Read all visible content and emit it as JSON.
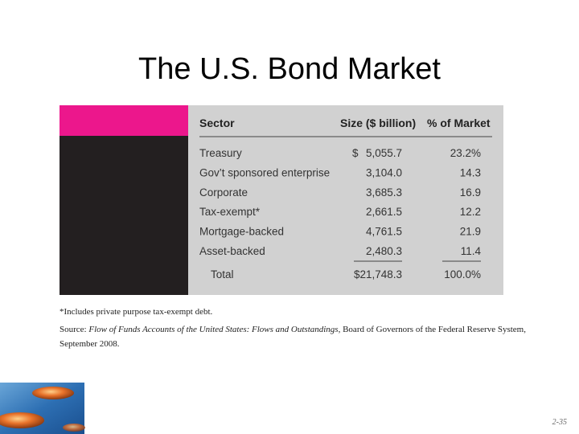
{
  "title": "The U.S. Bond Market",
  "table": {
    "header": [
      "Sector",
      "Size ($ billion)",
      "% of Market"
    ],
    "currency_symbol": "$",
    "rows": [
      [
        "Treasury",
        "5,055.7",
        "23.2%"
      ],
      [
        "Gov’t sponsored enterprise",
        "3,104.0",
        "14.3"
      ],
      [
        "Corporate",
        "3,685.3",
        "16.9"
      ],
      [
        "Tax-exempt*",
        "2,661.5",
        "12.2"
      ],
      [
        "Mortgage-backed",
        "4,761.5",
        "21.9"
      ],
      [
        "Asset-backed",
        "2,480.3",
        "11.4"
      ]
    ],
    "total": [
      "Total",
      "$21,748.3",
      "100.0%"
    ]
  },
  "footnote": "*Includes private purpose tax-exempt debt.",
  "source": {
    "prefix": "Source: ",
    "italic": "Flow of Funds Accounts of the United States: Flows and Outstandings",
    "rest": ", Board of Governors of the Federal Reserve System,",
    "line2": "September 2008."
  },
  "page_number": "2-35"
}
